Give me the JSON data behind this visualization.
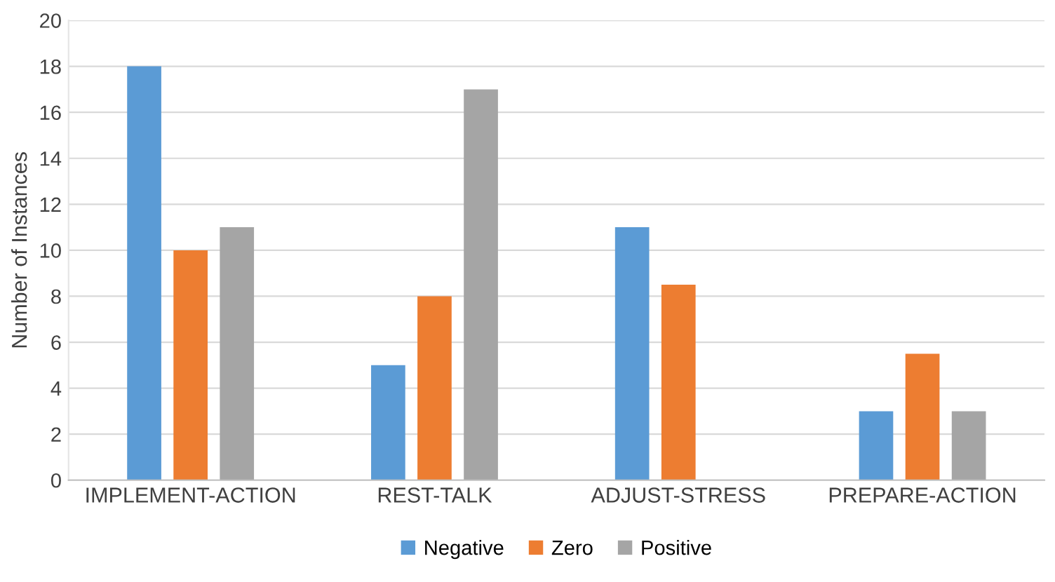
{
  "chart_data": {
    "type": "bar",
    "ylabel": "Number of Instances",
    "categories": [
      "IMPLEMENT-ACTION",
      "REST-TALK",
      "ADJUST-STRESS",
      "PREPARE-ACTION"
    ],
    "series": [
      {
        "name": "Negative",
        "color": "#5b9bd5",
        "values": [
          18,
          5,
          11,
          3
        ]
      },
      {
        "name": "Zero",
        "color": "#ed7d31",
        "values": [
          10,
          8,
          8.5,
          5.5
        ]
      },
      {
        "name": "Positive",
        "color": "#a5a5a5",
        "values": [
          11,
          17,
          null,
          3
        ]
      }
    ],
    "ylim": [
      0,
      20
    ],
    "yticks": [
      0,
      2,
      4,
      6,
      8,
      10,
      12,
      14,
      16,
      18,
      20
    ],
    "grid": "y",
    "legend": "bottom"
  }
}
